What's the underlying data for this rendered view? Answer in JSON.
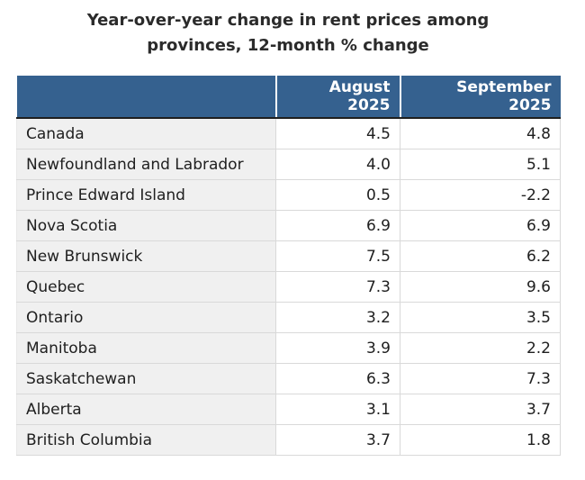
{
  "title": {
    "line1": "Year-over-year change in rent prices among",
    "line2": "provinces, 12-month % change"
  },
  "table": {
    "header": {
      "col0": "",
      "col1": "August 2025",
      "col2": "September 2025"
    },
    "rows": [
      {
        "label": "Canada",
        "aug": "4.5",
        "sep": "4.8"
      },
      {
        "label": "Newfoundland and Labrador",
        "aug": "4.0",
        "sep": "5.1"
      },
      {
        "label": "Prince Edward Island",
        "aug": "0.5",
        "sep": "-2.2"
      },
      {
        "label": "Nova Scotia",
        "aug": "6.9",
        "sep": "6.9"
      },
      {
        "label": "New Brunswick",
        "aug": "7.5",
        "sep": "6.2"
      },
      {
        "label": "Quebec",
        "aug": "7.3",
        "sep": "9.6"
      },
      {
        "label": "Ontario",
        "aug": "3.2",
        "sep": "3.5"
      },
      {
        "label": "Manitoba",
        "aug": "3.9",
        "sep": "2.2"
      },
      {
        "label": "Saskatchewan",
        "aug": "6.3",
        "sep": "7.3"
      },
      {
        "label": "Alberta",
        "aug": "3.1",
        "sep": "3.7"
      },
      {
        "label": "British Columbia",
        "aug": "3.7",
        "sep": "1.8"
      }
    ]
  },
  "colors": {
    "header_bg": "#35618F",
    "header_text": "#ffffff",
    "header_bottom_border": "#1f1f1f",
    "label_column_bg": "#f0f0f0",
    "row_border": "#d9d9d9",
    "text": "#202020",
    "title_text": "#2b2b2b"
  },
  "chart_data": {
    "type": "table",
    "title": "Year-over-year change in rent prices among provinces, 12-month % change",
    "unit": "%",
    "categories": [
      "Canada",
      "Newfoundland and Labrador",
      "Prince Edward Island",
      "Nova Scotia",
      "New Brunswick",
      "Quebec",
      "Ontario",
      "Manitoba",
      "Saskatchewan",
      "Alberta",
      "British Columbia"
    ],
    "series": [
      {
        "name": "August 2025",
        "values": [
          4.5,
          4.0,
          0.5,
          6.9,
          7.5,
          7.3,
          3.2,
          3.9,
          6.3,
          3.1,
          3.7
        ]
      },
      {
        "name": "September 2025",
        "values": [
          4.8,
          5.1,
          -2.2,
          6.9,
          6.2,
          9.6,
          3.5,
          2.2,
          7.3,
          3.7,
          1.8
        ]
      }
    ]
  }
}
